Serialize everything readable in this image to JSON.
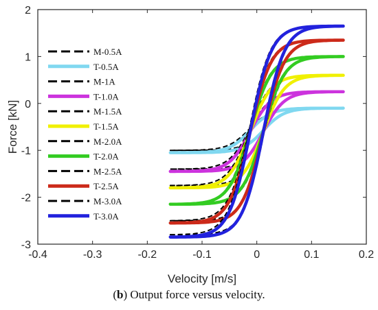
{
  "caption": {
    "label": "b",
    "text": "Output force versus velocity."
  },
  "chart_data": {
    "type": "line",
    "xlabel": "Velocity [m/s]",
    "ylabel": "Force [kN]",
    "xlim": [
      -0.4,
      0.2
    ],
    "ylim": [
      -3,
      2
    ],
    "xticks": [
      "-0.4",
      "-0.3",
      "-0.2",
      "-0.1",
      "0",
      "0.1",
      "0.2"
    ],
    "yticks": [
      "-3",
      "-2",
      "-1",
      "0",
      "1",
      "2"
    ],
    "grid": false,
    "legend_position": "left",
    "colors": {
      "0.5A": "#80d8f0",
      "1.0A": "#cc33dd",
      "1.5A": "#f0f000",
      "2.0A": "#33cc22",
      "2.5A": "#cc2a1a",
      "3.0A": "#2222dd",
      "measured": "#000000"
    },
    "series": [
      {
        "name": "M-0.5A",
        "style": "dashed",
        "color": "#000000",
        "max_force": -0.1,
        "min_force": -1.0
      },
      {
        "name": "T-0.5A",
        "style": "solid",
        "color": "#80d8f0",
        "max_force": -0.1,
        "min_force": -1.05
      },
      {
        "name": "M-1A",
        "style": "dashed",
        "color": "#000000",
        "max_force": 0.25,
        "min_force": -1.4
      },
      {
        "name": "T-1.0A",
        "style": "solid",
        "color": "#cc33dd",
        "max_force": 0.25,
        "min_force": -1.45
      },
      {
        "name": "M-1.5A",
        "style": "dashed",
        "color": "#000000",
        "max_force": 0.6,
        "min_force": -1.75
      },
      {
        "name": "T-1.5A",
        "style": "solid",
        "color": "#f0f000",
        "max_force": 0.6,
        "min_force": -1.8
      },
      {
        "name": "M-2.0A",
        "style": "dashed",
        "color": "#000000",
        "max_force": 1.0,
        "min_force": -2.15
      },
      {
        "name": "T-2.0A",
        "style": "solid",
        "color": "#33cc22",
        "max_force": 1.0,
        "min_force": -2.15
      },
      {
        "name": "M-2.5A",
        "style": "dashed",
        "color": "#000000",
        "max_force": 1.35,
        "min_force": -2.5
      },
      {
        "name": "T-2.5A",
        "style": "solid",
        "color": "#cc2a1a",
        "max_force": 1.35,
        "min_force": -2.55
      },
      {
        "name": "M-3.0A",
        "style": "dashed",
        "color": "#000000",
        "max_force": 1.65,
        "min_force": -2.8
      },
      {
        "name": "T-3.0A",
        "style": "solid",
        "color": "#2222dd",
        "max_force": 1.65,
        "min_force": -2.85
      }
    ],
    "velocity_range": [
      -0.158,
      0.158
    ]
  }
}
